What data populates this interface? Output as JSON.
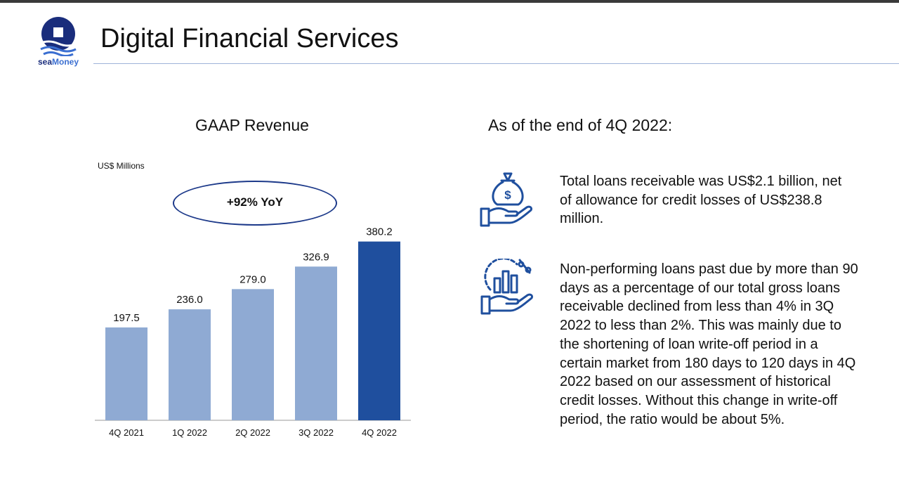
{
  "brand": {
    "name_part1": "sea",
    "name_part2": "Money"
  },
  "page": {
    "title": "Digital Financial Services"
  },
  "colors": {
    "brand_dark": "#1d3a8a",
    "bar_light": "#8faad3",
    "bar_highlight": "#1f4f9e",
    "rule": "#9fb3d9"
  },
  "chart_section": {
    "title": "GAAP Revenue",
    "unit_label": "US$ Millions",
    "yoy_callout": "+92% YoY"
  },
  "chart_data": {
    "type": "bar",
    "title": "GAAP Revenue",
    "ylabel": "US$ Millions",
    "xlabel": "",
    "categories": [
      "4Q 2021",
      "1Q 2022",
      "2Q 2022",
      "3Q 2022",
      "4Q 2022"
    ],
    "values": [
      197.5,
      236.0,
      279.0,
      326.9,
      380.2
    ],
    "value_labels": [
      "197.5",
      "236.0",
      "279.0",
      "326.9",
      "380.2"
    ],
    "highlight_index": 4,
    "ylim": [
      0,
      400
    ],
    "grid": false,
    "annotation": "+92% YoY"
  },
  "right_section": {
    "heading": "As of the end of 4Q 2022:",
    "items": [
      {
        "icon": "money-bag-hand-icon",
        "text": "Total loans receivable was US$2.1 billion, net of allowance for credit losses of US$238.8 million."
      },
      {
        "icon": "chart-percent-hand-icon",
        "text": "Non-performing loans past due by more than 90 days as a percentage of our total gross loans receivable declined from less than 4% in 3Q 2022 to less than 2%. This was mainly due to the shortening of loan write-off period in a certain market from 180 days to 120 days in 4Q 2022 based on our assessment of historical credit losses. Without this change in write-off period, the ratio would be about 5%."
      }
    ]
  }
}
